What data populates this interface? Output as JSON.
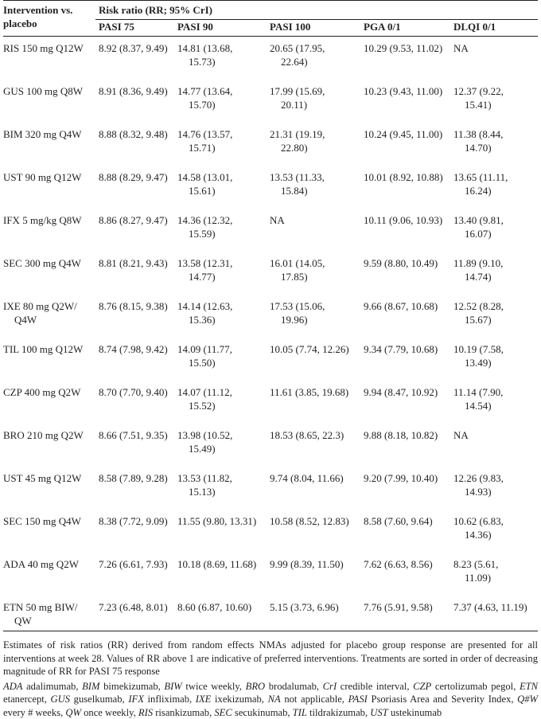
{
  "header": {
    "intervention_label_line1": "Intervention vs.",
    "intervention_label_line2": "placebo",
    "group_label": "Risk ratio (RR; 95% CrI)",
    "columns": [
      "PASI 75",
      "PASI 90",
      "PASI 100",
      "PGA 0/1",
      "DLQI 0/1"
    ]
  },
  "rows": [
    {
      "intervention": [
        "RIS 150 mg Q12W"
      ],
      "pasi75": [
        "8.92 (8.37, 9.49)"
      ],
      "pasi90": [
        "14.81 (13.68,",
        "15.73)"
      ],
      "pasi100": [
        "20.65 (17.95,",
        "22.64)"
      ],
      "pga": [
        "10.29 (9.53, 11.02)"
      ],
      "dlqi": [
        "NA"
      ]
    },
    {
      "intervention": [
        "GUS 100 mg Q8W"
      ],
      "pasi75": [
        "8.91 (8.36, 9.49)"
      ],
      "pasi90": [
        "14.77 (13.64,",
        "15.70)"
      ],
      "pasi100": [
        "17.99 (15.69,",
        "20.11)"
      ],
      "pga": [
        "10.23 (9.43, 11.00)"
      ],
      "dlqi": [
        "12.37 (9.22,",
        "15.41)"
      ]
    },
    {
      "intervention": [
        "BIM 320 mg Q4W"
      ],
      "pasi75": [
        "8.88 (8.32, 9.48)"
      ],
      "pasi90": [
        "14.76 (13.57,",
        "15.71)"
      ],
      "pasi100": [
        "21.31 (19.19,",
        "22.80)"
      ],
      "pga": [
        "10.24 (9.45, 11.00)"
      ],
      "dlqi": [
        "11.38 (8.44,",
        "14.70)"
      ]
    },
    {
      "intervention": [
        "UST 90 mg Q12W"
      ],
      "pasi75": [
        "8.88 (8.29, 9.47)"
      ],
      "pasi90": [
        "14.58 (13.01,",
        "15.61)"
      ],
      "pasi100": [
        "13.53 (11.33,",
        "15.84)"
      ],
      "pga": [
        "10.01 (8.92, 10.88)"
      ],
      "dlqi": [
        "13.65 (11.11,",
        "16.24)"
      ]
    },
    {
      "intervention": [
        "IFX 5 mg/kg Q8W"
      ],
      "pasi75": [
        "8.86 (8.27, 9.47)"
      ],
      "pasi90": [
        "14.36 (12.32,",
        "15.59)"
      ],
      "pasi100": [
        "NA"
      ],
      "pga": [
        "10.11 (9.06, 10.93)"
      ],
      "dlqi": [
        "13.40 (9.81,",
        "16.07)"
      ]
    },
    {
      "intervention": [
        "SEC 300 mg Q4W"
      ],
      "pasi75": [
        "8.81 (8.21, 9.43)"
      ],
      "pasi90": [
        "13.58 (12.31,",
        "14.77)"
      ],
      "pasi100": [
        "16.01 (14.05,",
        "17.85)"
      ],
      "pga": [
        "9.59 (8.80, 10.49)"
      ],
      "dlqi": [
        "11.89 (9.10,",
        "14.74)"
      ]
    },
    {
      "intervention": [
        "IXE 80 mg Q2W/",
        "Q4W"
      ],
      "pasi75": [
        "8.76 (8.15, 9.38)"
      ],
      "pasi90": [
        "14.14 (12.63,",
        "15.36)"
      ],
      "pasi100": [
        "17.53 (15.06,",
        "19.96)"
      ],
      "pga": [
        "9.66 (8.67, 10.68)"
      ],
      "dlqi": [
        "12.52 (8.28,",
        "15.67)"
      ]
    },
    {
      "intervention": [
        "TIL 100 mg Q12W"
      ],
      "pasi75": [
        "8.74 (7.98, 9.42)"
      ],
      "pasi90": [
        "14.09 (11.77,",
        "15.50)"
      ],
      "pasi100": [
        "10.05 (7.74, 12.26)"
      ],
      "pga": [
        "9.34 (7.79, 10.68)"
      ],
      "dlqi": [
        "10.19 (7.58,",
        "13.49)"
      ]
    },
    {
      "intervention": [
        "CZP 400 mg Q2W"
      ],
      "pasi75": [
        "8.70 (7.70, 9.40)"
      ],
      "pasi90": [
        "14.07 (11.12,",
        "15.52)"
      ],
      "pasi100": [
        "11.61 (3.85, 19.68)"
      ],
      "pga": [
        "9.94 (8.47, 10.92)"
      ],
      "dlqi": [
        "11.14 (7.90,",
        "14.54)"
      ]
    },
    {
      "intervention": [
        "BRO 210 mg Q2W"
      ],
      "pasi75": [
        "8.66 (7.51, 9.35)"
      ],
      "pasi90": [
        "13.98 (10.52,",
        "15.49)"
      ],
      "pasi100": [
        "18.53 (8.65, 22.3)"
      ],
      "pga": [
        "9.88 (8.18, 10.82)"
      ],
      "dlqi": [
        "NA"
      ]
    },
    {
      "intervention": [
        "UST 45 mg Q12W"
      ],
      "pasi75": [
        "8.58 (7.89, 9.28)"
      ],
      "pasi90": [
        "13.53 (11.82,",
        "15.13)"
      ],
      "pasi100": [
        "9.74 (8.04, 11.66)"
      ],
      "pga": [
        "9.20 (7.99, 10.40)"
      ],
      "dlqi": [
        "12.26 (9.83,",
        "14.93)"
      ]
    },
    {
      "intervention": [
        "SEC 150 mg Q4W"
      ],
      "pasi75": [
        "8.38 (7.72, 9.09)"
      ],
      "pasi90": [
        "11.55 (9.80, 13.31)"
      ],
      "pasi100": [
        "10.58 (8.52, 12.83)"
      ],
      "pga": [
        "8.58 (7.60, 9.64)"
      ],
      "dlqi": [
        "10.62 (6.83,",
        "14.36)"
      ]
    },
    {
      "intervention": [
        "ADA 40 mg Q2W"
      ],
      "pasi75": [
        "7.26 (6.61, 7.93)"
      ],
      "pasi90": [
        "10.18 (8.69, 11.68)"
      ],
      "pasi100": [
        "9.99 (8.39, 11.50)"
      ],
      "pga": [
        "7.62 (6.63, 8.56)"
      ],
      "dlqi": [
        "8.23 (5.61,",
        "11.09)"
      ]
    },
    {
      "intervention": [
        "ETN 50 mg BIW/",
        "QW"
      ],
      "pasi75": [
        "7.23 (6.48, 8.01)"
      ],
      "pasi90": [
        "8.60 (6.87, 10.60)"
      ],
      "pasi100": [
        "5.15 (3.73, 6.96)"
      ],
      "pga": [
        "7.76 (5.91, 9.58)"
      ],
      "dlqi": [
        "7.37 (4.63, 11.19)"
      ]
    }
  ],
  "footnote": "Estimates of risk ratios (RR) derived from random effects NMAs adjusted for placebo group response are presented for all interventions at week 28. Values of RR above 1 are indicative of preferred interventions. Treatments are sorted in order of decreasing magnitude of RR for PASI 75 response",
  "abbreviations": [
    {
      "abbr": "ADA",
      "def": "adalimumab"
    },
    {
      "abbr": "BIM",
      "def": "bimekizumab"
    },
    {
      "abbr": "BIW",
      "def": "twice weekly"
    },
    {
      "abbr": "BRO",
      "def": "brodalumab"
    },
    {
      "abbr": "CrI",
      "def": "credible interval"
    },
    {
      "abbr": "CZP",
      "def": "certolizumab pegol"
    },
    {
      "abbr": "ETN",
      "def": "etanercept"
    },
    {
      "abbr": "GUS",
      "def": "guselkumab"
    },
    {
      "abbr": "IFX",
      "def": "infliximab"
    },
    {
      "abbr": "IXE",
      "def": "ixekizumab"
    },
    {
      "abbr": "NA",
      "def": "not applicable"
    },
    {
      "abbr": "PASI",
      "def": "Psoriasis Area and Severity Index"
    },
    {
      "abbr": "Q#W",
      "def": "every # weeks"
    },
    {
      "abbr": "QW",
      "def": "once weekly"
    },
    {
      "abbr": "RIS",
      "def": "risankizumab"
    },
    {
      "abbr": "SEC",
      "def": "secukinumab"
    },
    {
      "abbr": "TIL",
      "def": "tildrakizumab"
    },
    {
      "abbr": "UST",
      "def": "ustekinumab"
    }
  ]
}
